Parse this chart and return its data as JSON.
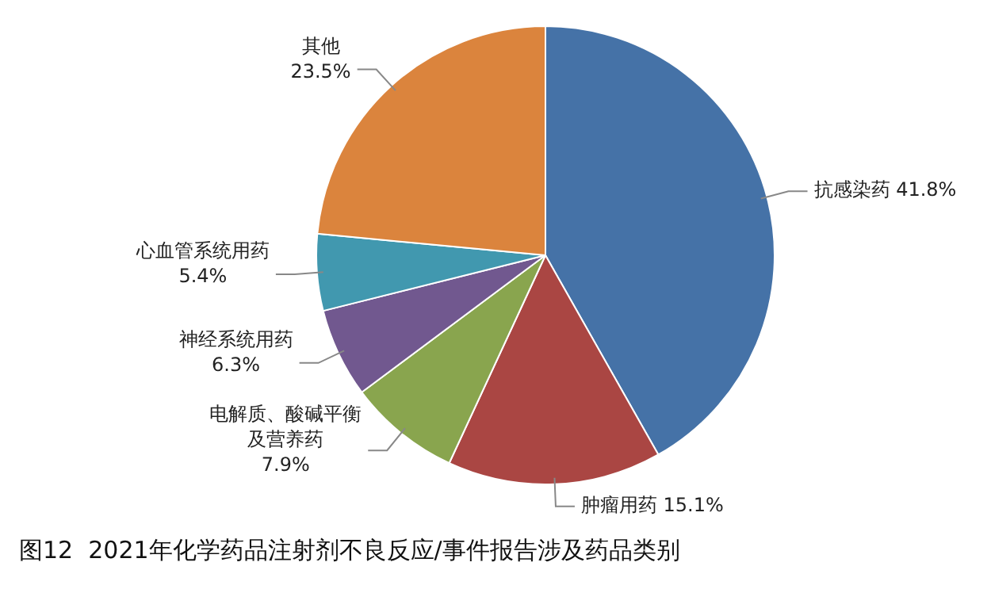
{
  "chart_data": {
    "type": "pie",
    "title": "图12  2021年化学药品注射剂不良反应/事件报告涉及药品类别",
    "categories": [
      "抗感染药",
      "肿瘤用药",
      "电解质、酸碱平衡及营养药",
      "神经系统用药",
      "心血管系统用药",
      "其他"
    ],
    "values": [
      41.8,
      15.1,
      7.9,
      6.3,
      5.4,
      23.5
    ],
    "value_labels": [
      "41.8%",
      "15.1%",
      "7.9%",
      "6.3%",
      "5.4%",
      "23.5%"
    ],
    "colors": [
      "#4572a7",
      "#aa4643",
      "#89a54e",
      "#71588f",
      "#4198af",
      "#db843d"
    ],
    "legend": false
  }
}
